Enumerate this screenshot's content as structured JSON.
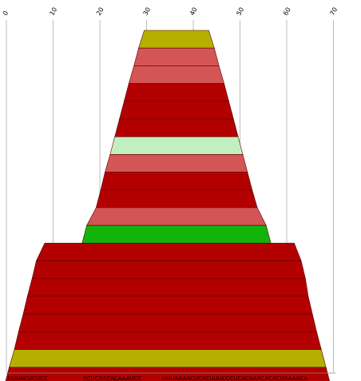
{
  "chart_data": {
    "type": "bar",
    "orientation": "horizontal-stacked-funnel",
    "axis": {
      "position": "top",
      "ticks": [
        0,
        10,
        20,
        30,
        40,
        50,
        60,
        70
      ],
      "tick_labels": [
        "0",
        "10",
        "20",
        "30",
        "40",
        "50",
        "60",
        "70"
      ],
      "xlim": [
        0,
        72
      ],
      "grid": true,
      "tick_label_rotation": "rotated"
    },
    "bottom_labels": [
      "UUUACUCUCC",
      "ACUCAACACAAAUCC",
      "UUUAAAACUCACUUUCCCUCACAAACACACUAAAACA"
    ],
    "rows": [
      {
        "start": 29.5,
        "end": 43.3,
        "color": "#b5b000"
      },
      {
        "start": 28.3,
        "end": 44.5,
        "color": "#d45555"
      },
      {
        "start": 27.3,
        "end": 45.5,
        "color": "#d45555"
      },
      {
        "start": 26.2,
        "end": 46.6,
        "color": "#b30000"
      },
      {
        "start": 25.2,
        "end": 47.6,
        "color": "#b30000"
      },
      {
        "start": 24.2,
        "end": 48.6,
        "color": "#b30000"
      },
      {
        "start": 23.2,
        "end": 49.6,
        "color": "#c2efc0"
      },
      {
        "start": 22.2,
        "end": 50.6,
        "color": "#d45555"
      },
      {
        "start": 21.1,
        "end": 51.6,
        "color": "#b30000"
      },
      {
        "start": 20.2,
        "end": 52.6,
        "color": "#b30000"
      },
      {
        "start": 19.2,
        "end": 53.7,
        "color": "#d45555"
      },
      {
        "start": 17.2,
        "end": 55.6,
        "color": "#12b30a"
      },
      {
        "start": 8.2,
        "end": 61.6,
        "color": "#b30000"
      },
      {
        "start": 6.4,
        "end": 63.1,
        "color": "#b30000"
      },
      {
        "start": 5.5,
        "end": 64.0,
        "color": "#b30000"
      },
      {
        "start": 4.5,
        "end": 64.6,
        "color": "#b30000"
      },
      {
        "start": 3.6,
        "end": 65.5,
        "color": "#b30000"
      },
      {
        "start": 2.6,
        "end": 66.4,
        "color": "#b30000"
      },
      {
        "start": 1.7,
        "end": 67.4,
        "color": "#b5b000"
      },
      {
        "start": 0.6,
        "end": 68.4,
        "color": "#b30000"
      }
    ]
  }
}
